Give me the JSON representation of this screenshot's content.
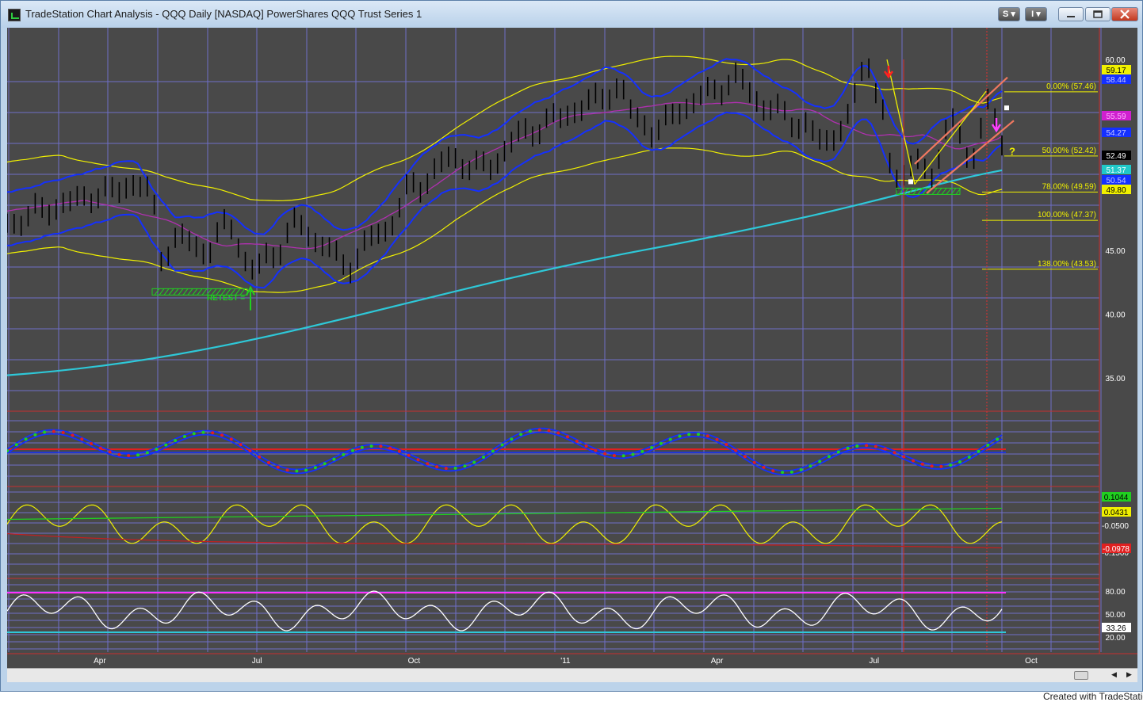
{
  "window": {
    "title": "TradeStation Chart Analysis - QQQ Daily [NASDAQ] PowerShares QQQ Trust Series 1",
    "btn_s": "S",
    "btn_i": "I"
  },
  "footer": "Created with TradeStation",
  "colors": {
    "bg": "#494949",
    "grid": "#6e6ec8",
    "yellow": "#f0f000",
    "blue": "#1430ff",
    "cyan": "#2ec8d8",
    "magenta": "#b030b0",
    "red": "#e02020",
    "green": "#20d020",
    "salmon": "#f07860",
    "white": "#ffffff"
  },
  "x_axis": {
    "ticks": [
      {
        "label": "Apr",
        "pos": 0.082
      },
      {
        "label": "Jul",
        "pos": 0.221
      },
      {
        "label": "Oct",
        "pos": 0.36
      },
      {
        "label": "'11",
        "pos": 0.494
      },
      {
        "label": "Apr",
        "pos": 0.628
      },
      {
        "label": "Jul",
        "pos": 0.767
      },
      {
        "label": "Oct",
        "pos": 0.906
      }
    ]
  },
  "price_panel": {
    "y_ticks": [
      "60.00",
      "45.00",
      "40.00",
      "35.00"
    ],
    "badges": [
      {
        "text": "59.17",
        "bg": "#f0f000",
        "fg": "#000000"
      },
      {
        "text": "58.44",
        "bg": "#1430ff",
        "fg": "#c8c8ff"
      },
      {
        "text": "55.59",
        "bg": "#d020d0",
        "fg": "#ffb0ff"
      },
      {
        "text": "54.27",
        "bg": "#1430ff",
        "fg": "#c8c8ff"
      },
      {
        "text": "52.49",
        "bg": "#000000",
        "fg": "#ffffff"
      },
      {
        "text": "51.37",
        "bg": "#20c8c8",
        "fg": "#ffffff"
      },
      {
        "text": "50.54",
        "bg": "#1430ff",
        "fg": "#c8c8ff"
      },
      {
        "text": "49.80",
        "bg": "#f0f000",
        "fg": "#000000"
      }
    ],
    "fib_levels": [
      "0.00% (57.46)",
      "50.00% (52.42)",
      "78.00% (49.59)",
      "100.00% (47.37)",
      "138.00% (43.53)"
    ],
    "annotations": {
      "retest": "RETEST =",
      "question": "?"
    }
  },
  "oscillator_panel": {
    "y_ticks": [
      "-0.0500",
      "-0.1500"
    ],
    "badges": [
      {
        "text": "0.1044",
        "bg": "#20d020",
        "fg": "#000000"
      },
      {
        "text": "0.0431",
        "bg": "#f0f000",
        "fg": "#000000"
      },
      {
        "text": "-0.0978",
        "bg": "#e02020",
        "fg": "#ffffff"
      }
    ]
  },
  "rsi_panel": {
    "y_ticks": [
      "80.00",
      "50.00",
      "20.00"
    ],
    "badges": [
      {
        "text": "33.26",
        "bg": "#ffffff",
        "fg": "#000000"
      }
    ]
  }
}
